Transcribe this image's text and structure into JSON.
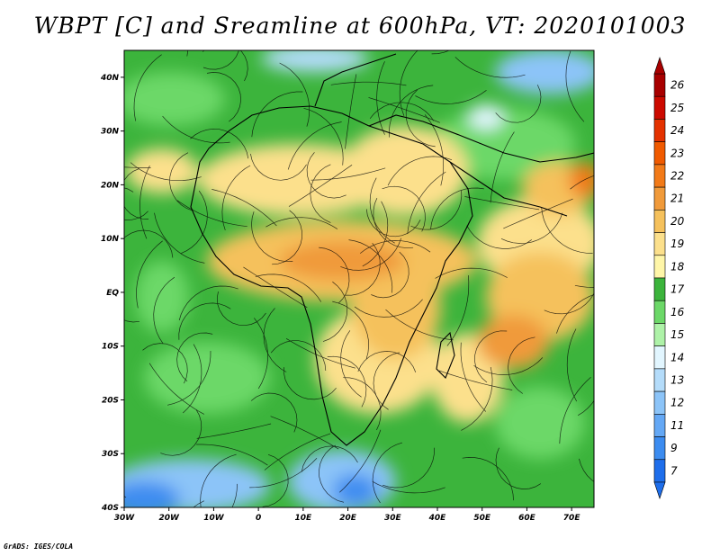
{
  "title": "WBPT [C] and Sreamline at 600hPa, VT: 2020101003",
  "footer": "GrADS: IGES/COLA",
  "map": {
    "lon_range": [
      -30,
      75
    ],
    "lat_range": [
      -40,
      45
    ],
    "x_ticks": [
      {
        "lon": -30,
        "label": "30W"
      },
      {
        "lon": -20,
        "label": "20W"
      },
      {
        "lon": -10,
        "label": "10W"
      },
      {
        "lon": 0,
        "label": "0"
      },
      {
        "lon": 10,
        "label": "10E"
      },
      {
        "lon": 20,
        "label": "20E"
      },
      {
        "lon": 30,
        "label": "30E"
      },
      {
        "lon": 40,
        "label": "40E"
      },
      {
        "lon": 50,
        "label": "50E"
      },
      {
        "lon": 60,
        "label": "60E"
      },
      {
        "lon": 70,
        "label": "70E"
      }
    ],
    "y_ticks": [
      {
        "lat": -40,
        "label": "40S"
      },
      {
        "lat": -30,
        "label": "30S"
      },
      {
        "lat": -20,
        "label": "20S"
      },
      {
        "lat": -10,
        "label": "10S"
      },
      {
        "lat": 0,
        "label": "EQ"
      },
      {
        "lat": 10,
        "label": "10N"
      },
      {
        "lat": 20,
        "label": "20N"
      },
      {
        "lat": 30,
        "label": "30N"
      },
      {
        "lat": 40,
        "label": "40N"
      }
    ]
  },
  "colorbar": {
    "levels": [
      "7",
      "9",
      "11",
      "12",
      "13",
      "14",
      "15",
      "16",
      "17",
      "18",
      "19",
      "20",
      "21",
      "22",
      "23",
      "24",
      "25",
      "26"
    ],
    "colors": [
      "#1e6eeb",
      "#3c8cf0",
      "#64a8f5",
      "#8cc4f8",
      "#b4dcfa",
      "#e2f6ff",
      "#aef2a8",
      "#6cd868",
      "#3cb43c",
      "#fff6a8",
      "#fce08c",
      "#f5c15c",
      "#f09a3a",
      "#f27a18",
      "#f05a00",
      "#e43200",
      "#cc0a00",
      "#a80000"
    ]
  }
}
